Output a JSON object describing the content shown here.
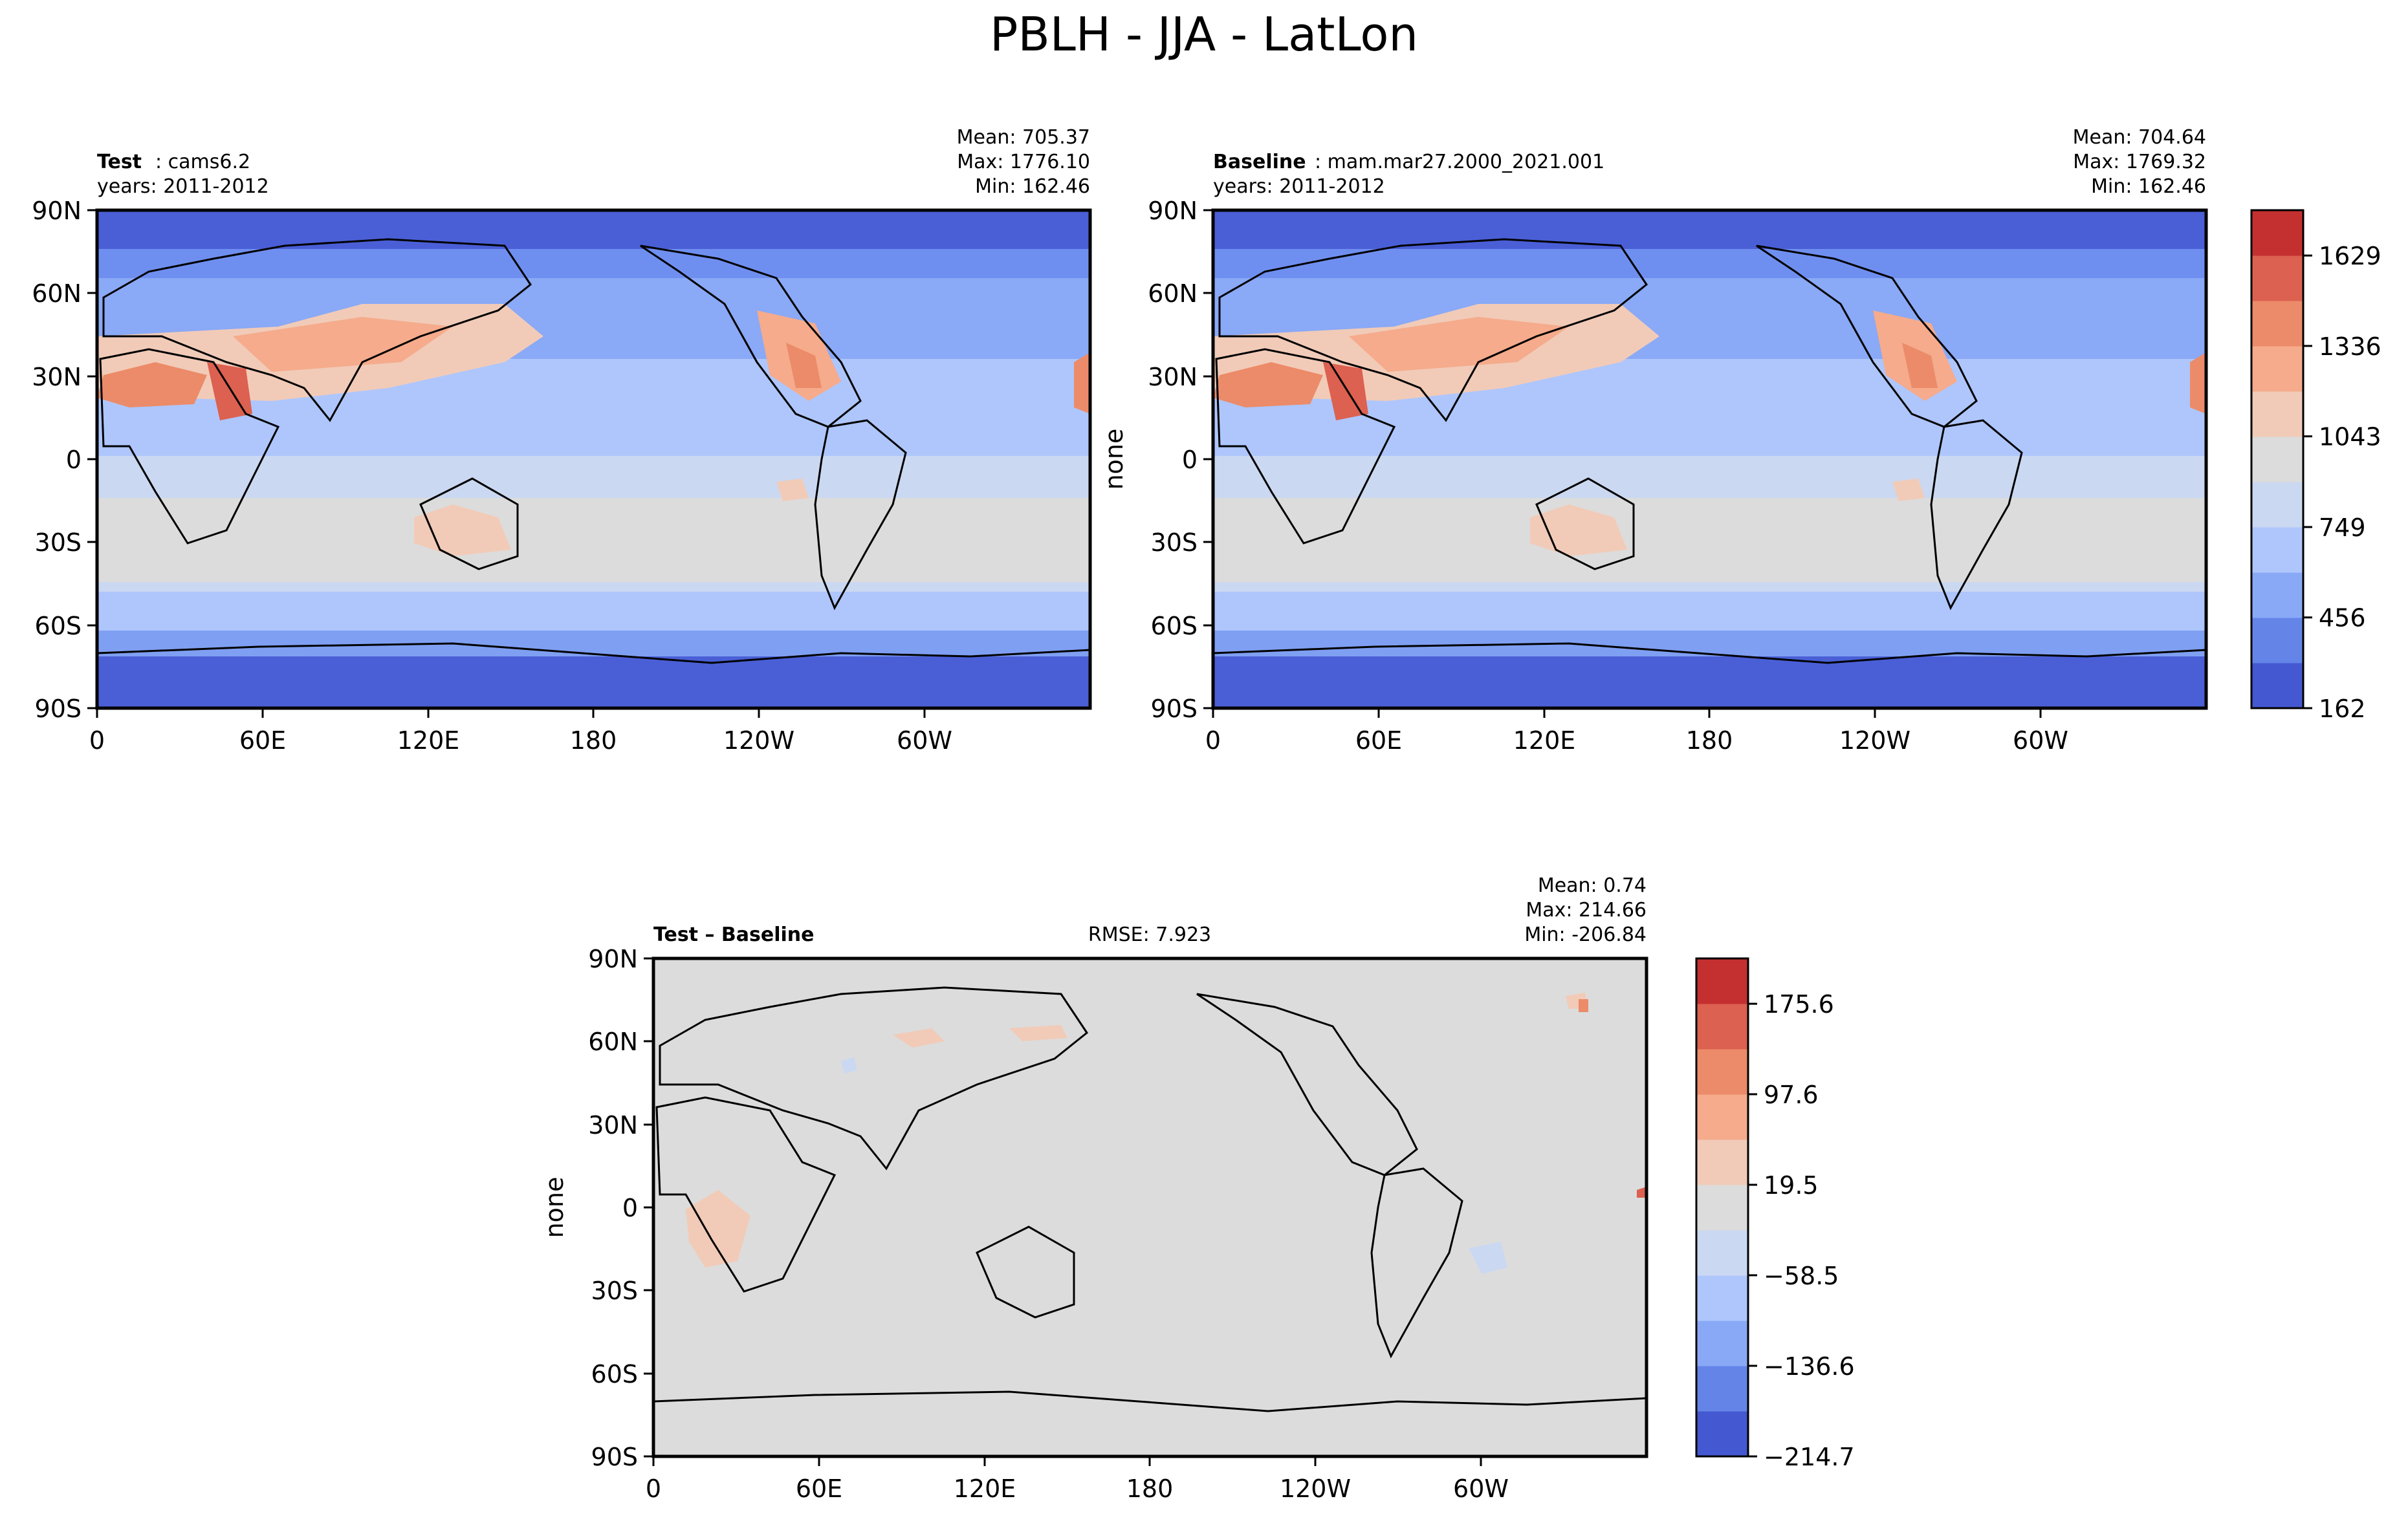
{
  "figure": {
    "title": "PBLH - JJA - LatLon"
  },
  "chart_data": [
    {
      "type": "heatmap",
      "panel": "test",
      "label_bold": "Test",
      "label_rest": ": cams6.2",
      "years": "years: 2011-2012",
      "stats": {
        "mean": "Mean: 705.37",
        "max": "Max: 1776.10",
        "min": "Min: 162.46"
      },
      "ylabel": "",
      "x_ticks": [
        "0",
        "60E",
        "120E",
        "180",
        "120W",
        "60W"
      ],
      "y_ticks": [
        "90N",
        "60N",
        "30N",
        "0",
        "30S",
        "60S",
        "90S"
      ],
      "xlim": [
        0,
        360
      ],
      "ylim": [
        -90,
        90
      ],
      "colorbar": "abs"
    },
    {
      "type": "heatmap",
      "panel": "baseline",
      "label_bold": "Baseline",
      "label_rest": ": mam.mar27.2000_2021.001",
      "years": "years: 2011-2012",
      "stats": {
        "mean": "Mean: 704.64",
        "max": "Max: 1769.32",
        "min": "Min: 162.46"
      },
      "ylabel": "none",
      "x_ticks": [
        "0",
        "60E",
        "120E",
        "180",
        "120W",
        "60W"
      ],
      "y_ticks": [
        "90N",
        "60N",
        "30N",
        "0",
        "30S",
        "60S",
        "90S"
      ],
      "xlim": [
        0,
        360
      ],
      "ylim": [
        -90,
        90
      ],
      "colorbar": "abs"
    },
    {
      "type": "heatmap",
      "panel": "diff",
      "label_bold": "Test – Baseline",
      "rmse": "RMSE: 7.923",
      "stats": {
        "mean": "Mean:  0.74",
        "max": "Max: 214.66",
        "min": "Min: -206.84"
      },
      "ylabel": "none",
      "x_ticks": [
        "0",
        "60E",
        "120E",
        "180",
        "120W",
        "60W"
      ],
      "y_ticks": [
        "90N",
        "60N",
        "30N",
        "0",
        "30S",
        "60S",
        "90S"
      ],
      "xlim": [
        0,
        360
      ],
      "ylim": [
        -90,
        90
      ],
      "colorbar": "diff"
    }
  ],
  "colorbars": {
    "abs": {
      "levels": 10,
      "range": [
        162,
        1776
      ],
      "tick_values": [
        162,
        456,
        749,
        1043,
        1336,
        1629
      ],
      "tick_labels": [
        "162",
        "456",
        "749",
        "1043",
        "1336",
        "1629"
      ],
      "colors": [
        "#4358d1",
        "#6484e8",
        "#89a9f7",
        "#aec6fc",
        "#cbd8f1",
        "#dcdcdc",
        "#f1cbb8",
        "#f5ab8c",
        "#ec8b69",
        "#dc6150",
        "#c43030"
      ]
    },
    "diff": {
      "levels": 10,
      "range": [
        -214.7,
        214.7
      ],
      "tick_values": [
        -214.7,
        -136.6,
        -58.5,
        19.5,
        97.6,
        175.6
      ],
      "tick_labels": [
        "−214.7",
        "−136.6",
        "−58.5",
        "19.5",
        "97.6",
        "175.6"
      ],
      "colors": [
        "#4358d1",
        "#6484e8",
        "#89a9f7",
        "#aec6fc",
        "#cbd8f1",
        "#dcdcdc",
        "#f1cbb8",
        "#f5ab8c",
        "#ec8b69",
        "#dc6150",
        "#c43030"
      ]
    }
  }
}
